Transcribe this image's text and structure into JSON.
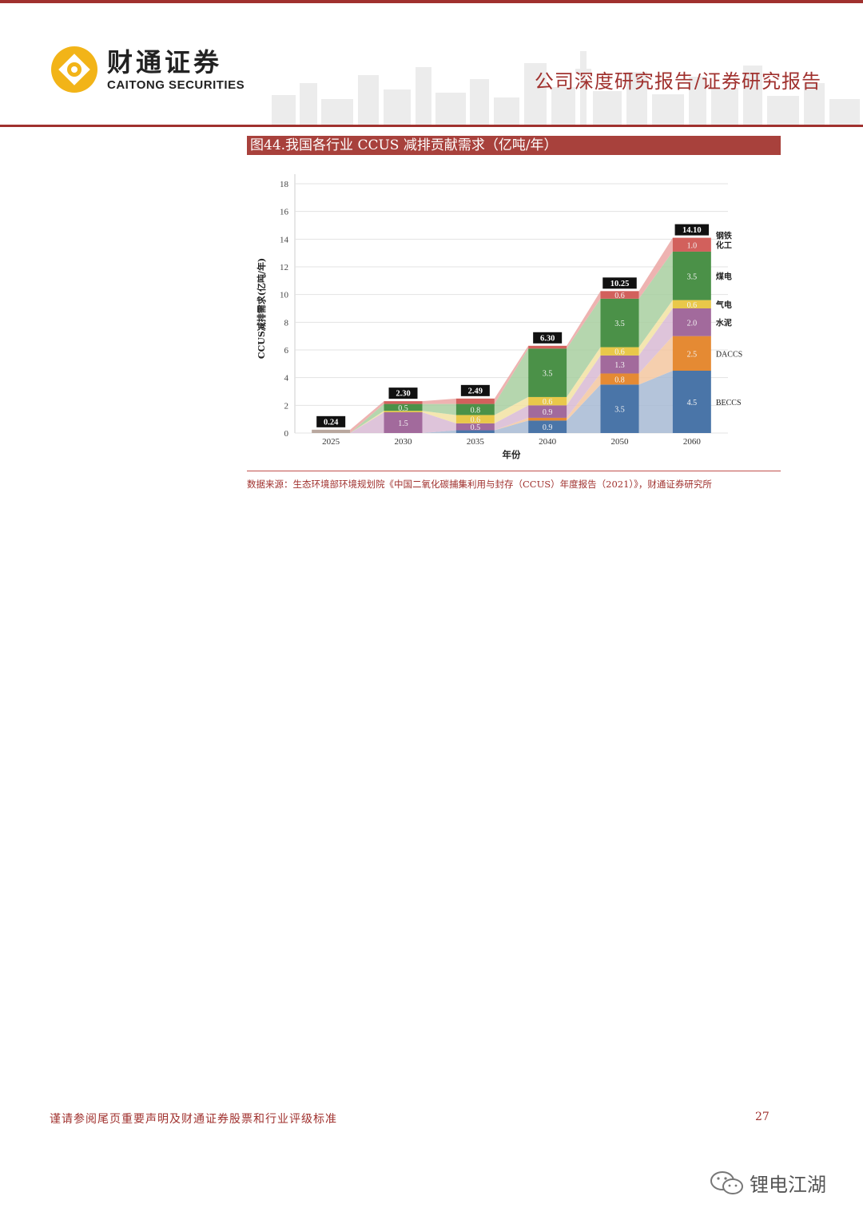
{
  "header": {
    "brand_cn": "财通证券",
    "brand_en": "CAITONG SECURITIES",
    "report_type": "公司深度研究报告/证券研究报告"
  },
  "figure": {
    "title": "图44.我国各行业 CCUS 减排贡献需求（亿吨/年）",
    "source": "数据来源：生态环境部环境规划院《中国二氧化碳捕集利用与封存（CCUS）年度报告（2021）》，财通证券研究所"
  },
  "chart_data": {
    "type": "bar",
    "stacked": true,
    "categories": [
      "2025",
      "2030",
      "2035",
      "2040",
      "2050",
      "2060"
    ],
    "xlabel": "年份",
    "ylabel": "CCUS减排需求(亿吨/年)",
    "ylim": [
      0,
      18
    ],
    "yticks": [
      0,
      2,
      4,
      6,
      8,
      10,
      12,
      14,
      16,
      18
    ],
    "grid": true,
    "series": [
      {
        "name": "BECCS",
        "color": "#4a75a8",
        "band": "#a7bad3",
        "values": [
          0,
          0,
          0.2,
          0.9,
          3.5,
          4.5
        ],
        "labels": [
          "",
          "",
          "",
          "0.9",
          "3.5",
          "4.5"
        ]
      },
      {
        "name": "DACCS",
        "color": "#e58a33",
        "band": "#f3c7a0",
        "values": [
          0,
          0,
          0,
          0.2,
          0.8,
          2.5
        ],
        "labels": [
          "",
          "",
          "",
          "",
          "0.8",
          "2.5"
        ]
      },
      {
        "name": "水泥",
        "color": "#a26a9c",
        "band": "#d8bad4",
        "values": [
          0,
          1.5,
          0.5,
          0.9,
          1.3,
          2.0
        ],
        "labels": [
          "",
          "1.5",
          "0.5",
          "0.9",
          "1.3",
          "2.0"
        ]
      },
      {
        "name": "气电",
        "color": "#e9c84a",
        "band": "#f2e2a2",
        "values": [
          0,
          0.1,
          0.6,
          0.6,
          0.6,
          0.6
        ],
        "labels": [
          "",
          "",
          "0.6",
          "0.6",
          "0.6",
          "0.6"
        ]
      },
      {
        "name": "煤电",
        "color": "#4b9148",
        "band": "#a8cfa0",
        "values": [
          0,
          0.5,
          0.8,
          3.5,
          3.5,
          3.5
        ],
        "labels": [
          "",
          "0.5",
          "0.8",
          "3.5",
          "3.5",
          "3.5"
        ]
      },
      {
        "name": "钢铁化工",
        "legend_lines": [
          "钢铁",
          "化工"
        ],
        "color": "#d2605c",
        "band": "#eba6a3",
        "values": [
          0.24,
          0.2,
          0.39,
          0.2,
          0.55,
          1.0
        ],
        "labels": [
          "",
          "",
          "",
          "",
          "0.6",
          "1.0"
        ]
      }
    ],
    "totals": [
      "0.24",
      "2.30",
      "2.49",
      "6.30",
      "10.25",
      "14.10"
    ]
  },
  "footer": {
    "disclaimer": "谨请参阅尾页重要声明及财通证券股票和行业评级标准",
    "page_number": "27"
  },
  "watermark": {
    "text": "锂电江湖"
  }
}
